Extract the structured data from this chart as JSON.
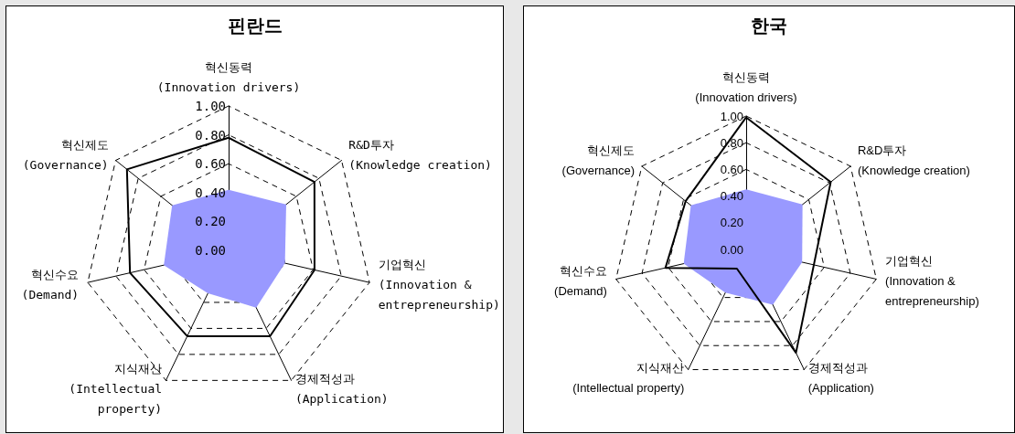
{
  "chart_data": [
    {
      "type": "radar",
      "title": "핀란드",
      "categories": [
        "혁신동력\n(Innovation drivers)",
        "R&D투자\n(Knowledge creation)",
        "기업혁신\n(Innovation &\nentrepreneurship)",
        "경제적성과\n(Application)",
        "지식재산\n(Intellectual\nproperty)",
        "혁신수요\n(Demand)",
        "혁신제도\n(Governance)"
      ],
      "series": [
        {
          "type": "area",
          "color": "#9999ff",
          "values": [
            0.42,
            0.51,
            0.4,
            0.44,
            0.33,
            0.46,
            0.5
          ]
        },
        {
          "type": "radar",
          "color": "#000000",
          "values": [
            0.78,
            0.76,
            0.61,
            0.66,
            0.66,
            0.7,
            0.9
          ]
        }
      ],
      "ylim": [
        0,
        1
      ],
      "yticks": [
        {
          "value": 0,
          "label": "0.00"
        },
        {
          "value": 0.2,
          "label": "0.20"
        },
        {
          "value": 0.4,
          "label": "0.40"
        },
        {
          "value": 0.6,
          "label": "0.60"
        },
        {
          "value": 0.8,
          "label": "0.80"
        },
        {
          "value": 1,
          "label": "1.00"
        }
      ],
      "grid": true,
      "marker": "none",
      "line_style": "solid"
    },
    {
      "type": "radar",
      "title": "한국",
      "categories": [
        "혁신동력\n(Innovation drivers)",
        "R&D투자\n(Knowledge creation)",
        "기업혁신\n(Innovation &\nentrepreneurship)",
        "경제적성과\n(Application)",
        "지식재산\n(Intellectual property)",
        "혁신수요\n(Demand)",
        "혁신제도\n(Governance)"
      ],
      "series": [
        {
          "type": "area",
          "color": "#9999ff",
          "values": [
            0.45,
            0.54,
            0.43,
            0.46,
            0.36,
            0.48,
            0.53
          ]
        },
        {
          "type": "radar",
          "color": "#000000",
          "values": [
            0.99,
            0.81,
            0.52,
            0.86,
            0.16,
            0.62,
            0.58
          ]
        }
      ],
      "ylim": [
        0,
        1
      ],
      "yticks": [
        {
          "value": 0,
          "label": "0.00"
        },
        {
          "value": 0.2,
          "label": "0.20"
        },
        {
          "value": 0.4,
          "label": "0.40"
        },
        {
          "value": 0.6,
          "label": "0.60"
        },
        {
          "value": 0.8,
          "label": "0.80"
        },
        {
          "value": 1,
          "label": "1.00"
        }
      ],
      "grid": true,
      "marker": "none",
      "line_style": "solid"
    }
  ]
}
